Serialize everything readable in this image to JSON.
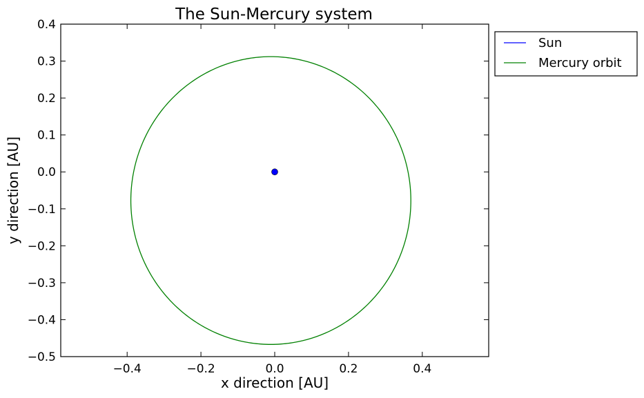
{
  "chart_data": {
    "type": "line",
    "title": "The Sun-Mercury system",
    "xlabel": "x direction [AU]",
    "ylabel": "y direction [AU]",
    "xlim": [
      -0.58,
      0.58
    ],
    "ylim": [
      -0.5,
      0.4
    ],
    "xticks": [
      -0.4,
      -0.2,
      0.0,
      0.2,
      0.4
    ],
    "xtick_labels": [
      "−0.4",
      "−0.2",
      "0.0",
      "0.2",
      "0.4"
    ],
    "yticks": [
      -0.5,
      -0.4,
      -0.3,
      -0.2,
      -0.1,
      0.0,
      0.1,
      0.2,
      0.3,
      0.4
    ],
    "ytick_labels": [
      "−0.5",
      "−0.4",
      "−0.3",
      "−0.2",
      "−0.1",
      "0.0",
      "0.1",
      "0.2",
      "0.3",
      "0.4"
    ],
    "grid": false,
    "legend_position": "outside-top-right",
    "series": [
      {
        "name": "Sun",
        "color": "#0000ff",
        "marker": "circle",
        "points": [
          [
            0.0,
            0.0
          ]
        ]
      },
      {
        "name": "Mercury orbit",
        "color": "#008000",
        "orbit": {
          "center": [
            -0.0105,
            -0.0775
          ],
          "semi_axis_x": 0.3795,
          "semi_axis_y": 0.3895
        }
      }
    ]
  }
}
